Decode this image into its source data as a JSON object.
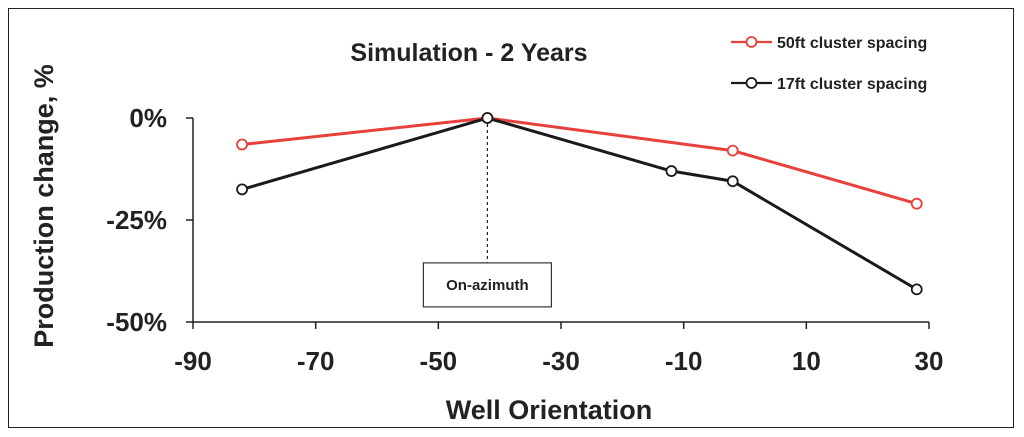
{
  "chart_data": {
    "type": "line",
    "title": "Simulation - 2 Years",
    "xlabel": "Well Orientation",
    "ylabel": "Production change, %",
    "xlim": [
      -90,
      30
    ],
    "ylim": [
      -50,
      0
    ],
    "xticks": [
      -90,
      -70,
      -50,
      -30,
      -10,
      10,
      30
    ],
    "yticks": [
      {
        "value": 0,
        "label": "0%"
      },
      {
        "value": -25,
        "label": "-25%"
      },
      {
        "value": -50,
        "label": "-50%"
      }
    ],
    "grid": false,
    "legend_position": "top-right",
    "series": [
      {
        "name": "50ft cluster spacing",
        "color": "#e8403a",
        "points": [
          {
            "x": -82,
            "y": -6.5
          },
          {
            "x": -42,
            "y": 0
          },
          {
            "x": -2,
            "y": -8
          },
          {
            "x": 28,
            "y": -21
          }
        ]
      },
      {
        "name": "17ft cluster spacing",
        "color": "#1a1a1a",
        "points": [
          {
            "x": -82,
            "y": -17.5
          },
          {
            "x": -42,
            "y": 0
          },
          {
            "x": -12,
            "y": -13
          },
          {
            "x": -2,
            "y": -15.5
          },
          {
            "x": 28,
            "y": -42
          }
        ]
      }
    ],
    "annotation": {
      "text": "On-azimuth",
      "x": -42,
      "y_from": 0,
      "y_to": -36
    }
  }
}
